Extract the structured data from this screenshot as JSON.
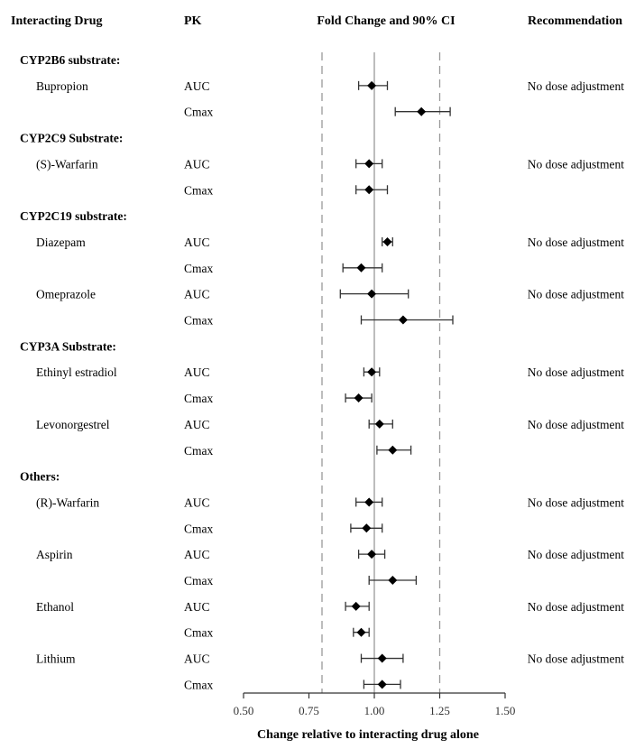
{
  "chart_data": {
    "type": "forest",
    "headers": {
      "drug": "Interacting Drug",
      "pk": "PK",
      "plot": "Fold Change and 90% CI",
      "rec": "Recommendation"
    },
    "xlabel": "Change relative to interacting drug alone",
    "xlim": [
      0.5,
      1.5
    ],
    "xticks": [
      "0.50",
      "0.75",
      "1.00",
      "1.25",
      "1.50"
    ],
    "reference_line": 1.0,
    "bounds_lines": [
      0.8,
      1.25
    ],
    "groups": [
      {
        "name": "CYP2B6 substrate:",
        "drugs": [
          {
            "name": "Bupropion",
            "rec": "No dose adjustment",
            "pk": [
              {
                "param": "AUC",
                "est": 0.99,
                "lo": 0.94,
                "hi": 1.05
              },
              {
                "param": "Cmax",
                "est": 1.18,
                "lo": 1.08,
                "hi": 1.29
              }
            ]
          }
        ]
      },
      {
        "name": "CYP2C9 Substrate:",
        "drugs": [
          {
            "name": "(S)-Warfarin",
            "rec": "No dose adjustment",
            "pk": [
              {
                "param": "AUC",
                "est": 0.98,
                "lo": 0.93,
                "hi": 1.03
              },
              {
                "param": "Cmax",
                "est": 0.98,
                "lo": 0.93,
                "hi": 1.05
              }
            ]
          }
        ]
      },
      {
        "name": "CYP2C19 substrate:",
        "drugs": [
          {
            "name": "Diazepam",
            "rec": "No dose adjustment",
            "pk": [
              {
                "param": "AUC",
                "est": 1.05,
                "lo": 1.03,
                "hi": 1.07
              },
              {
                "param": "Cmax",
                "est": 0.95,
                "lo": 0.88,
                "hi": 1.03
              }
            ]
          },
          {
            "name": "Omeprazole",
            "rec": "No dose adjustment",
            "pk": [
              {
                "param": "AUC",
                "est": 0.99,
                "lo": 0.87,
                "hi": 1.13
              },
              {
                "param": "Cmax",
                "est": 1.11,
                "lo": 0.95,
                "hi": 1.3
              }
            ]
          }
        ]
      },
      {
        "name": "CYP3A Substrate:",
        "drugs": [
          {
            "name": "Ethinyl estradiol",
            "rec": "No dose adjustment",
            "pk": [
              {
                "param": "AUC",
                "est": 0.99,
                "lo": 0.96,
                "hi": 1.02
              },
              {
                "param": "Cmax",
                "est": 0.94,
                "lo": 0.89,
                "hi": 0.99
              }
            ]
          },
          {
            "name": "Levonorgestrel",
            "rec": "No dose adjustment",
            "pk": [
              {
                "param": "AUC",
                "est": 1.02,
                "lo": 0.98,
                "hi": 1.07
              },
              {
                "param": "Cmax",
                "est": 1.07,
                "lo": 1.01,
                "hi": 1.14
              }
            ]
          }
        ]
      },
      {
        "name": "Others:",
        "drugs": [
          {
            "name": "(R)-Warfarin",
            "rec": "No dose adjustment",
            "pk": [
              {
                "param": "AUC",
                "est": 0.98,
                "lo": 0.93,
                "hi": 1.03
              },
              {
                "param": "Cmax",
                "est": 0.97,
                "lo": 0.91,
                "hi": 1.03
              }
            ]
          },
          {
            "name": "Aspirin",
            "rec": "No dose adjustment",
            "pk": [
              {
                "param": "AUC",
                "est": 0.99,
                "lo": 0.94,
                "hi": 1.04
              },
              {
                "param": "Cmax",
                "est": 1.07,
                "lo": 0.98,
                "hi": 1.16
              }
            ]
          },
          {
            "name": "Ethanol",
            "rec": "No dose adjustment",
            "pk": [
              {
                "param": "AUC",
                "est": 0.93,
                "lo": 0.89,
                "hi": 0.98
              },
              {
                "param": "Cmax",
                "est": 0.95,
                "lo": 0.92,
                "hi": 0.98
              }
            ]
          },
          {
            "name": "Lithium",
            "rec": "No dose adjustment",
            "pk": [
              {
                "param": "AUC",
                "est": 1.03,
                "lo": 0.95,
                "hi": 1.11
              },
              {
                "param": "Cmax",
                "est": 1.03,
                "lo": 0.96,
                "hi": 1.1
              }
            ]
          }
        ]
      }
    ]
  }
}
